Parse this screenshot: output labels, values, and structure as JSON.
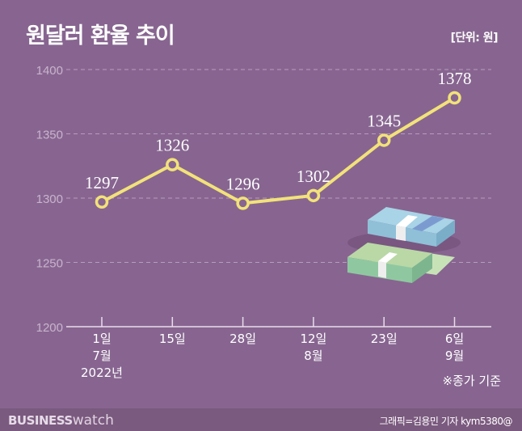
{
  "title": "원달러 환율 추이",
  "unit": "[단위: 원]",
  "note": "※종가 기준",
  "footer": {
    "logo_bold": "BUSINESS",
    "logo_light": "watch",
    "credit": "그래픽=김용민 기자 kym5380@"
  },
  "colors": {
    "background": "#876590",
    "line": "#f2e27a",
    "footer": "#7b5a7f"
  },
  "chart_data": {
    "type": "line",
    "title": "원달러 환율 추이",
    "unit": "[단위: 원]",
    "categories": [
      [
        "1일",
        "7월",
        "2022년"
      ],
      [
        "15일"
      ],
      [
        "28일"
      ],
      [
        "12일",
        "8월"
      ],
      [
        "23일"
      ],
      [
        "6일",
        "9월"
      ]
    ],
    "values": [
      1297,
      1326,
      1296,
      1302,
      1345,
      1378
    ],
    "ylim": [
      1200,
      1400
    ],
    "yticks": [
      1200,
      1250,
      1300,
      1350,
      1400
    ],
    "grid": true,
    "data_labels": true
  }
}
